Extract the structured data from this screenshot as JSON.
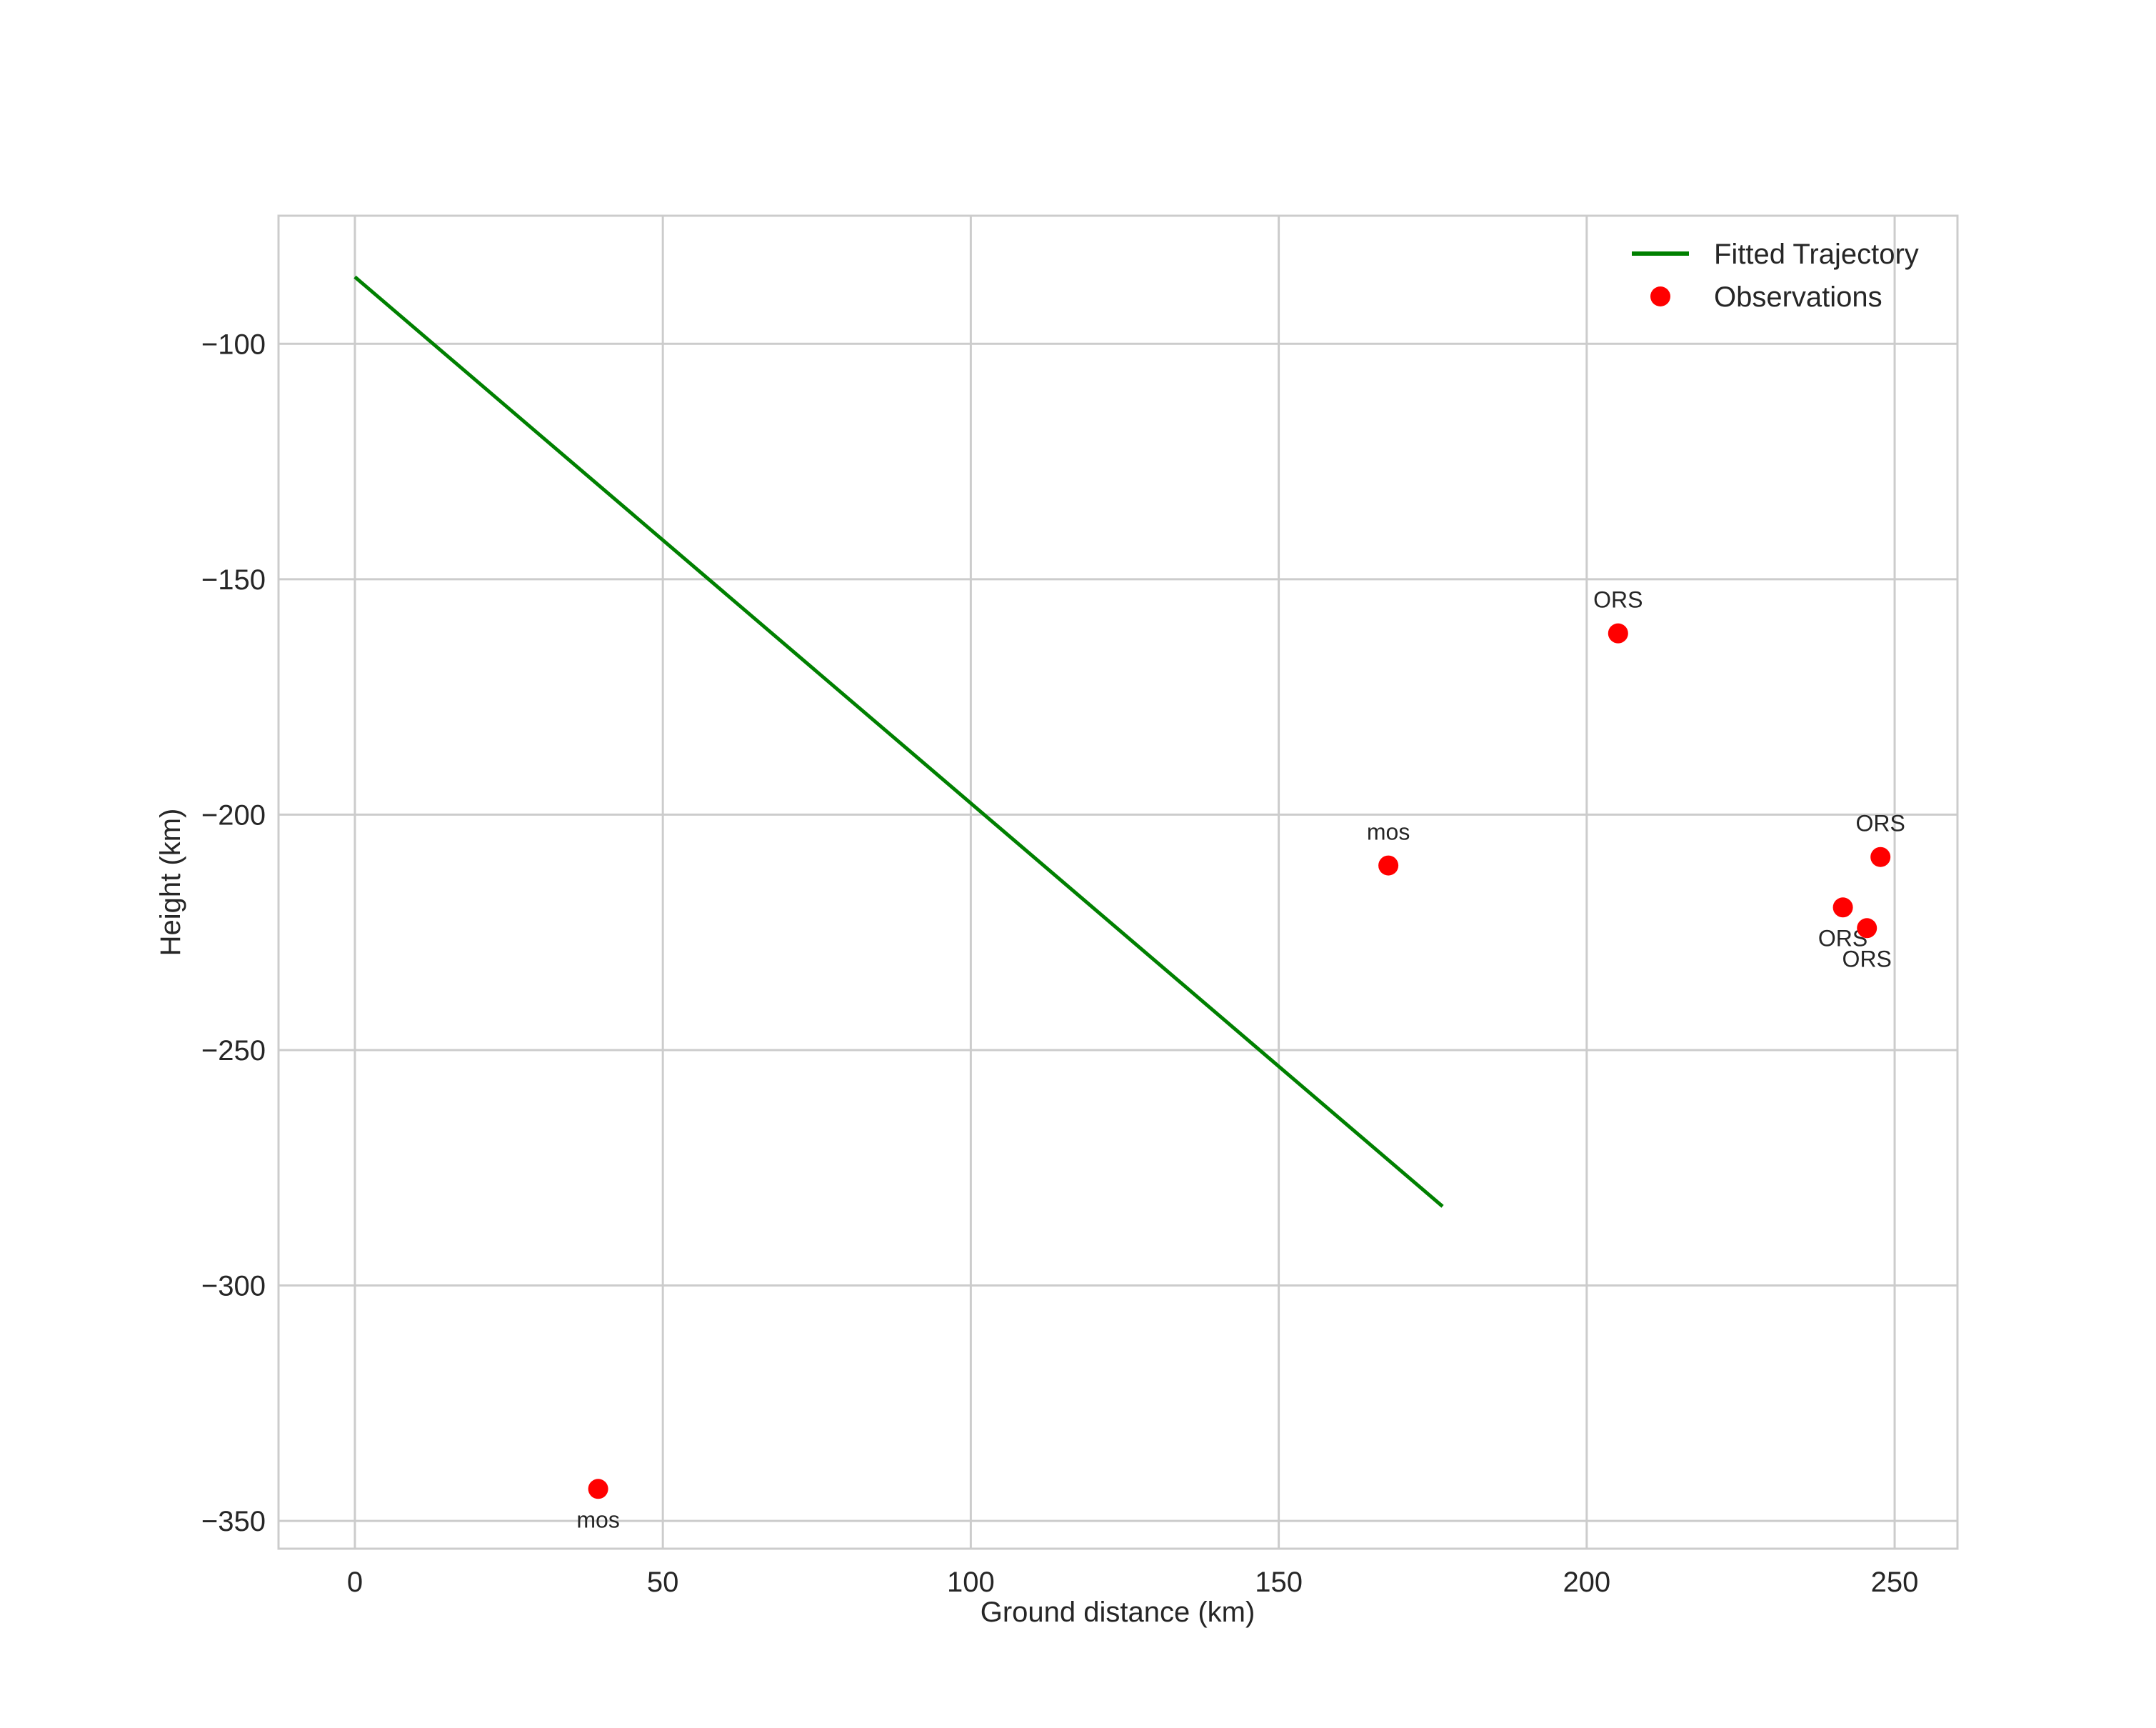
{
  "chart_data": {
    "type": "line",
    "title": "",
    "xlabel": "Ground distance (km)",
    "ylabel": "Height (km)",
    "xlim": [
      -12.4,
      260.2
    ],
    "ylim": [
      -355.9,
      -72.8
    ],
    "grid": true,
    "legend_placement": "top-right",
    "xticks": [
      0,
      50,
      100,
      150,
      200,
      250
    ],
    "xtick_labels": [
      "0",
      "50",
      "100",
      "150",
      "200",
      "250"
    ],
    "yticks": [
      -100,
      -150,
      -200,
      -250,
      -300,
      -350
    ],
    "ytick_labels": [
      "−100",
      "−150",
      "−200",
      "−250",
      "−300",
      "−350"
    ],
    "series": [
      {
        "name": "Fitted Trajectory",
        "kind": "line",
        "color": "#008000",
        "x": [
          0,
          176.6
        ],
        "y": [
          -85.8,
          -283.2
        ]
      },
      {
        "name": "Observations",
        "kind": "scatter",
        "color": "#ff0000",
        "points": [
          {
            "x": 39.5,
            "y": -343.2,
            "label": "mos",
            "label_pos": "below"
          },
          {
            "x": 167.8,
            "y": -210.8,
            "label": "mos",
            "label_pos": "above"
          },
          {
            "x": 205.1,
            "y": -161.5,
            "label": "ORS",
            "label_pos": "above"
          },
          {
            "x": 247.7,
            "y": -209.0,
            "label": "ORS",
            "label_pos": "above"
          },
          {
            "x": 241.6,
            "y": -219.7,
            "label": "ORS",
            "label_pos": "below"
          },
          {
            "x": 245.5,
            "y": -224.1,
            "label": "ORS",
            "label_pos": "below"
          }
        ]
      }
    ],
    "legend": [
      "Fitted Trajectory",
      "Observations"
    ]
  }
}
